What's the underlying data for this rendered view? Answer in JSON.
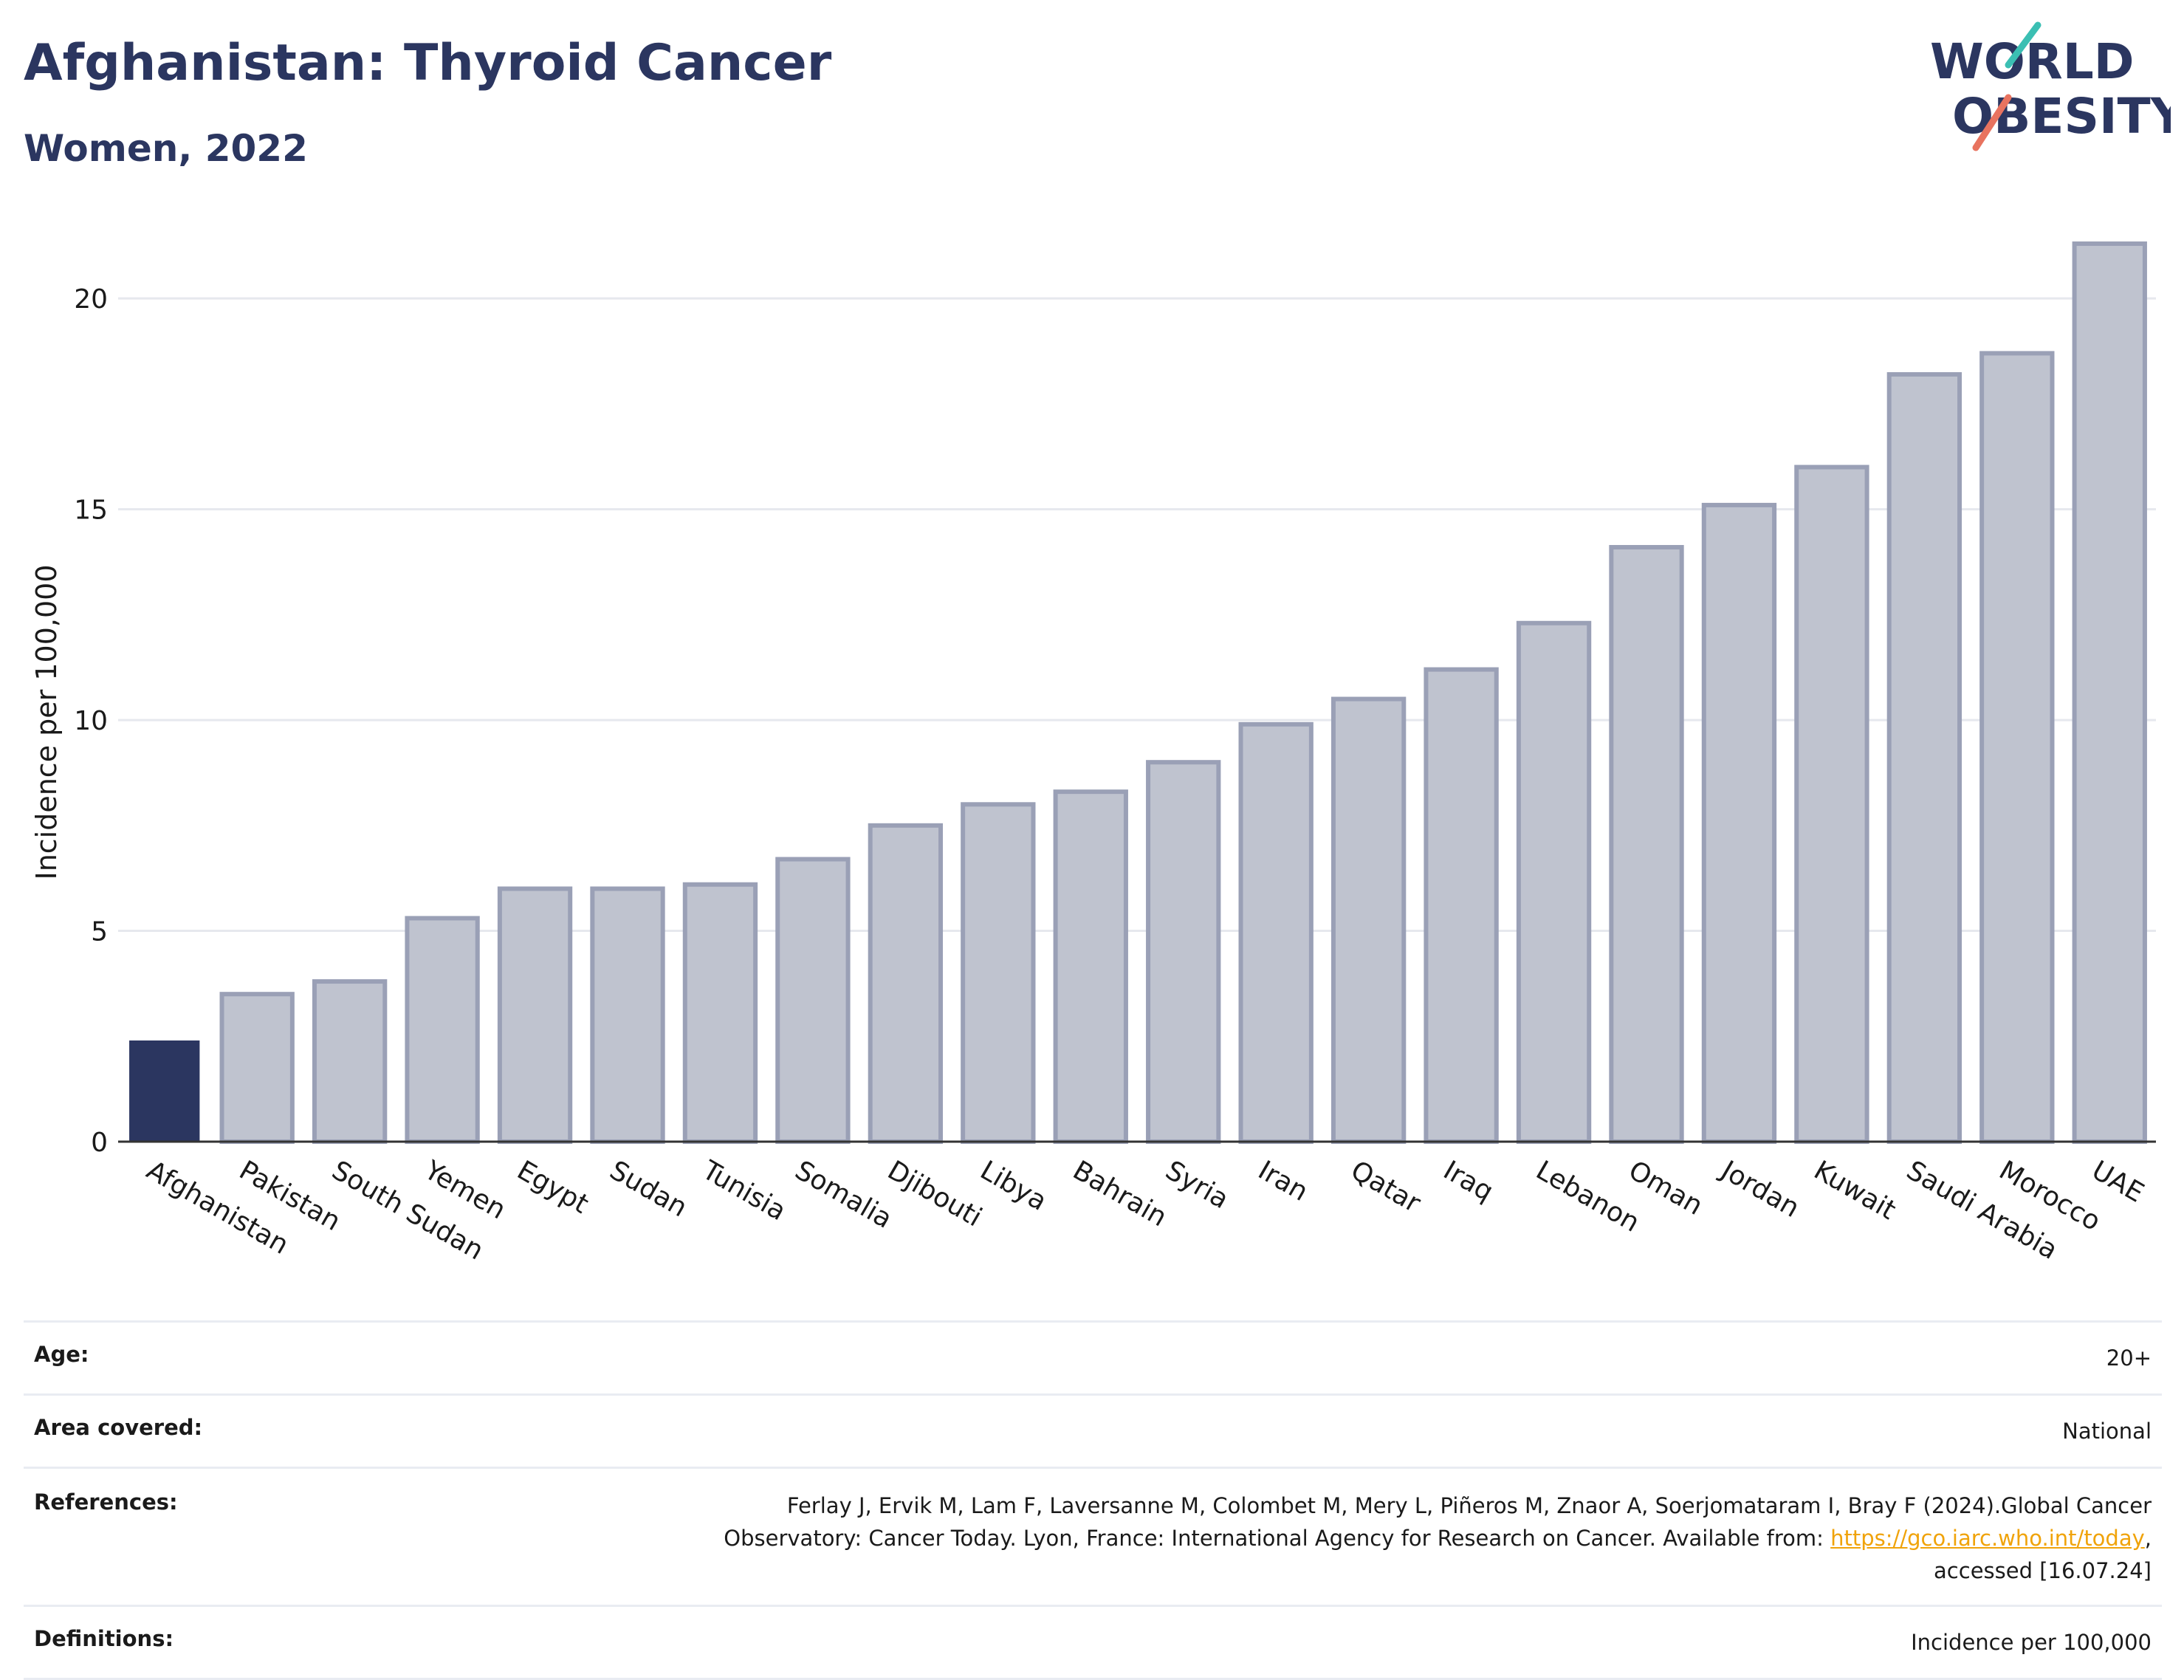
{
  "header": {
    "title": "Afghanistan: Thyroid Cancer",
    "subtitle": "Women, 2022"
  },
  "logo": {
    "line1": "WORLD",
    "line2": "OBESITY"
  },
  "colors": {
    "highlight_bar": "#2b3660",
    "other_bar_fill": "#bfc3cf",
    "other_bar_border": "#9aa0b6",
    "title": "#2b3660",
    "grid": "#e6e8ee",
    "link": "#f0a30a"
  },
  "chart_data": {
    "type": "bar",
    "title": "Afghanistan: Thyroid Cancer",
    "subtitle": "Women, 2022",
    "xlabel": "",
    "ylabel": "Incidence per 100,000",
    "ylim": [
      0,
      22
    ],
    "yticks": [
      0,
      5,
      10,
      15,
      20
    ],
    "grid": true,
    "highlight": "Afghanistan",
    "categories": [
      "Afghanistan",
      "Pakistan",
      "South Sudan",
      "Yemen",
      "Egypt",
      "Sudan",
      "Tunisia",
      "Somalia",
      "Djibouti",
      "Libya",
      "Bahrain",
      "Syria",
      "Iran",
      "Qatar",
      "Iraq",
      "Lebanon",
      "Oman",
      "Jordan",
      "Kuwait",
      "Saudi Arabia",
      "Morocco",
      "UAE"
    ],
    "values": [
      2.4,
      3.5,
      3.8,
      5.3,
      6.0,
      6.0,
      6.1,
      6.7,
      7.5,
      8.0,
      8.3,
      9.0,
      9.9,
      10.5,
      11.2,
      12.3,
      14.1,
      15.1,
      16.0,
      18.2,
      18.7,
      21.3
    ]
  },
  "info": {
    "age": {
      "label": "Age:",
      "value": "20+"
    },
    "area": {
      "label": "Area covered:",
      "value": "National"
    },
    "references": {
      "label": "References:",
      "line1": "Ferlay J, Ervik M, Lam F, Laversanne M, Colombet M, Mery L, Piñeros M, Znaor A, Soerjomataram I, Bray F (2024).Global Cancer",
      "line2_pre": "Observatory: Cancer Today. Lyon, France: International Agency for Research on Cancer. Available from: ",
      "link": "https://gco.iarc.who.int/today",
      "line2_post": ",",
      "line3": "accessed [16.07.24]"
    },
    "definitions": {
      "label": "Definitions:",
      "value": "Incidence per 100,000"
    }
  }
}
